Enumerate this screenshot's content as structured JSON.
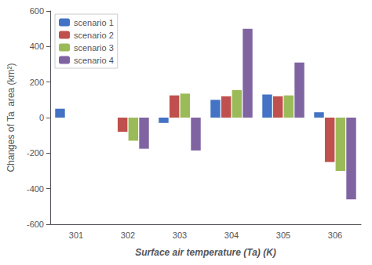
{
  "chart_data": {
    "type": "bar",
    "categories": [
      "301",
      "302",
      "303",
      "304",
      "305",
      "306"
    ],
    "series": [
      {
        "name": "scenario 1",
        "color": "#4472c4",
        "values": [
          50,
          0,
          -30,
          100,
          130,
          30
        ]
      },
      {
        "name": "scenario 2",
        "color": "#c0504d",
        "values": [
          0,
          -80,
          125,
          120,
          120,
          -250
        ]
      },
      {
        "name": "scenario 3",
        "color": "#9bbb59",
        "values": [
          0,
          -130,
          135,
          155,
          125,
          -300
        ]
      },
      {
        "name": "scenario 4",
        "color": "#8064a2",
        "values": [
          0,
          -175,
          -185,
          500,
          310,
          -460
        ]
      }
    ],
    "xlabel": "Surface air temperature (Ta) (K)",
    "ylabel": "Changes of Ta  area (km²)",
    "ylim": [
      -600,
      600
    ],
    "yticks": [
      -600,
      -400,
      -200,
      0,
      200,
      400,
      600
    ],
    "grid": false,
    "legend": "upper left"
  }
}
